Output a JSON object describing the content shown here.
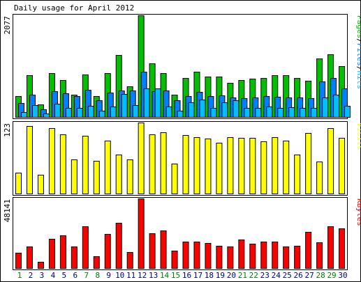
{
  "chart_data": {
    "title": "Daily usage for April 2012",
    "categories": [
      "1",
      "2",
      "3",
      "4",
      "5",
      "6",
      "7",
      "8",
      "9",
      "10",
      "11",
      "12",
      "13",
      "14",
      "15",
      "16",
      "17",
      "18",
      "19",
      "20",
      "21",
      "22",
      "23",
      "24",
      "25",
      "26",
      "27",
      "28",
      "29",
      "30"
    ],
    "weekend_days": [
      "1",
      "7",
      "8",
      "14",
      "15",
      "21",
      "22",
      "28",
      "29"
    ],
    "colors": {
      "pages": "#00c000",
      "files": "#0080ff",
      "hits": "#00bfff",
      "visits": "#ffff00",
      "kbytes": "#ff0000",
      "weekday_label": "#000080",
      "weekend_label": "#008000",
      "frame": "#000000"
    },
    "panels": [
      {
        "type": "bar",
        "y_max_label": "2077",
        "ymax": 2077,
        "legend": [
          {
            "text": "Pages",
            "color": "#00c000"
          },
          {
            "text": "/",
            "color": "#000000"
          },
          {
            "text": "Files",
            "color": "#0080ff"
          },
          {
            "text": "/",
            "color": "#000000"
          },
          {
            "text": "Hits",
            "color": "#00bfff"
          }
        ],
        "series": [
          {
            "name": "Pages",
            "values": [
              430,
              850,
              260,
              890,
              750,
              460,
              870,
              420,
              900,
              1270,
              620,
              2077,
              1100,
              900,
              450,
              800,
              930,
              830,
              830,
              690,
              760,
              780,
              790,
              860,
              860,
              790,
              740,
              1200,
              1280,
              1040
            ]
          },
          {
            "name": "Files",
            "values": [
              285,
              450,
              150,
              530,
              485,
              420,
              550,
              345,
              495,
              535,
              540,
              920,
              525,
              535,
              345,
              425,
              510,
              425,
              440,
              395,
              390,
              395,
              430,
              410,
              405,
              395,
              390,
              730,
              795,
              580
            ]
          },
          {
            "name": "Hits",
            "values": [
              100,
              235,
              65,
              275,
              180,
              185,
              225,
              135,
              220,
              470,
              245,
              590,
              590,
              215,
              135,
              295,
              355,
              190,
              295,
              335,
              185,
              180,
              210,
              185,
              195,
              190,
              185,
              400,
              455,
              230
            ]
          }
        ]
      },
      {
        "type": "bar",
        "y_max_label": "123",
        "ymax": 123,
        "legend": [
          {
            "text": "Visits",
            "color": "#ffff00"
          }
        ],
        "series": [
          {
            "name": "Visits",
            "values": [
              36,
              117,
              33,
              113,
              103,
              59,
              100,
              57,
              92,
              67,
              59,
              123,
              103,
              106,
              52,
              101,
              98,
              95,
              88,
              98,
              96,
              96,
              90,
              98,
              92,
              67,
              105,
              55,
              113,
              96
            ]
          }
        ]
      },
      {
        "type": "bar",
        "y_max_label": "48141",
        "ymax": 48141,
        "legend": [
          {
            "text": "KBytes",
            "color": "#ff0000"
          }
        ],
        "series": [
          {
            "name": "KBytes",
            "values": [
              10400,
              14800,
              4500,
              20000,
              22700,
              14800,
              28700,
              8400,
              23700,
              31500,
              11200,
              48141,
              24100,
              26100,
              11900,
              18500,
              18300,
              17200,
              15500,
              15000,
              19800,
              17000,
              18500,
              18500,
              15000,
              15500,
              24800,
              17700,
              28700,
              27400
            ]
          }
        ]
      }
    ]
  }
}
